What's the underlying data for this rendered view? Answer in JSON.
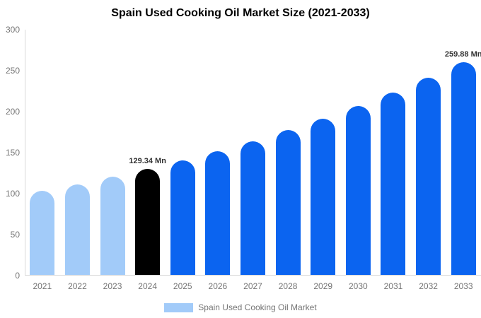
{
  "chart_data": {
    "type": "bar",
    "title": "Spain Used Cooking Oil Market Size (2021-2033)",
    "categories": [
      "2021",
      "2022",
      "2023",
      "2024",
      "2025",
      "2026",
      "2027",
      "2028",
      "2029",
      "2030",
      "2031",
      "2032",
      "2033"
    ],
    "values": [
      102.5,
      110.7,
      119.7,
      129.34,
      139.8,
      151.0,
      163.2,
      176.4,
      190.6,
      206.0,
      222.6,
      240.5,
      259.88
    ],
    "bar_value_labels": [
      "",
      "",
      "",
      "129.34 Mn",
      "",
      "",
      "",
      "",
      "",
      "",
      "",
      "",
      "259.88 Mn"
    ],
    "bar_colors": [
      "#a2cbf9",
      "#a2cbf9",
      "#a2cbf9",
      "#000000",
      "#0b64f0",
      "#0b64f0",
      "#0b64f0",
      "#0b64f0",
      "#0b64f0",
      "#0b64f0",
      "#0b64f0",
      "#0b64f0",
      "#0b64f0"
    ],
    "colors": {
      "historical": "#a2cbf9",
      "base_year": "#000000",
      "forecast": "#0b64f0",
      "axis_line": "#d9d9d9",
      "tick_text": "#757575",
      "value_label_text": "#333333"
    },
    "xlabel": "",
    "ylabel": "",
    "ylim": [
      0,
      300
    ],
    "yticks": [
      0,
      50,
      100,
      150,
      200,
      250,
      300
    ],
    "grid": false,
    "legend": {
      "position": "bottom-center",
      "label": "Spain Used Cooking Oil Market"
    }
  }
}
